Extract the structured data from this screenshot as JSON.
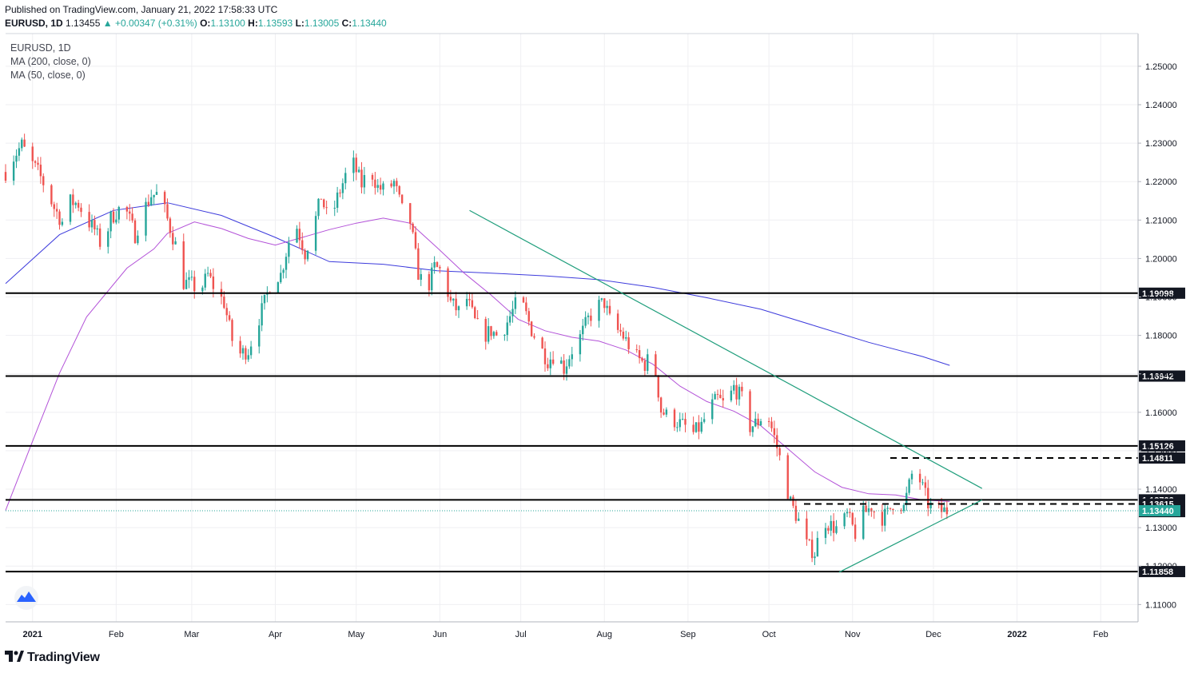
{
  "header": {
    "published": "Published on TradingView.com, January 21, 2022 17:58:33 UTC",
    "symbol": "EURUSD, 1D",
    "price": "1.13455",
    "change_arrow": "▲",
    "change": "+0.00347 (+0.31%)",
    "o_label": "O:",
    "o": "1.13100",
    "h_label": "H:",
    "h": "1.13593",
    "l_label": "L:",
    "l": "1.13005",
    "c_label": "C:",
    "c": "1.13440"
  },
  "legend": {
    "symbol": "EURUSD, 1D",
    "ma200": "MA (200, close, 0)",
    "ma50": "MA (50, close, 0)"
  },
  "footer": {
    "logo_text": "TradingView",
    "logo_icon": "tradingview-logo-icon",
    "watermark_icon": "tradingview-cloud-icon"
  },
  "colors": {
    "up": "#26a69a",
    "down": "#ef5350",
    "ma200": "#3d3bdc",
    "ma50": "#b352d8",
    "trend": "#1f9e7c",
    "level": "#000000",
    "current": "#26a69a",
    "grid": "#efeff2"
  },
  "chart_data": {
    "type": "candlestick",
    "title": "EURUSD, 1D",
    "ylim": [
      1.1055,
      1.2585
    ],
    "y_ticks": [
      "1.25000",
      "1.24000",
      "1.23000",
      "1.22000",
      "1.21000",
      "1.20000",
      "1.19000",
      "1.18000",
      "1.17000",
      "1.16000",
      "1.15000",
      "1.14000",
      "1.13000",
      "1.12000",
      "1.11000"
    ],
    "x_ticks": [
      {
        "label": "2021",
        "bold": true
      },
      {
        "label": "Feb",
        "bold": false
      },
      {
        "label": "Mar",
        "bold": false
      },
      {
        "label": "Apr",
        "bold": false
      },
      {
        "label": "May",
        "bold": false
      },
      {
        "label": "Jun",
        "bold": false
      },
      {
        "label": "Jul",
        "bold": false
      },
      {
        "label": "Aug",
        "bold": false
      },
      {
        "label": "Sep",
        "bold": false
      },
      {
        "label": "Oct",
        "bold": false
      },
      {
        "label": "Nov",
        "bold": false
      },
      {
        "label": "Dec",
        "bold": false
      },
      {
        "label": "2022",
        "bold": true
      },
      {
        "label": "Feb",
        "bold": false
      }
    ],
    "close_path": [
      [
        0,
        1.2225
      ],
      [
        3,
        1.2265
      ],
      [
        6,
        1.2295
      ],
      [
        9,
        1.2255
      ],
      [
        12,
        1.2225
      ],
      [
        15,
        1.2182
      ],
      [
        18,
        1.2132
      ],
      [
        21,
        1.2095
      ],
      [
        24,
        1.2148
      ],
      [
        27,
        1.2142
      ],
      [
        30,
        1.2102
      ],
      [
        33,
        1.2075
      ],
      [
        36,
        1.2025
      ],
      [
        39,
        1.2105
      ],
      [
        42,
        1.2128
      ],
      [
        45,
        1.2118
      ],
      [
        48,
        1.2062
      ],
      [
        51,
        1.2122
      ],
      [
        54,
        1.2165
      ],
      [
        57,
        1.2168
      ],
      [
        60,
        1.2101
      ],
      [
        63,
        1.2035
      ],
      [
        66,
        1.1938
      ],
      [
        69,
        1.1932
      ],
      [
        72,
        1.1915
      ],
      [
        75,
        1.1957
      ],
      [
        78,
        1.1915
      ],
      [
        81,
        1.1885
      ],
      [
        84,
        1.1788
      ],
      [
        87,
        1.1752
      ],
      [
        90,
        1.1762
      ],
      [
        93,
        1.1825
      ],
      [
        96,
        1.1885
      ],
      [
        99,
        1.1952
      ],
      [
        102,
        1.1958
      ],
      [
        105,
        1.2045
      ],
      [
        108,
        1.2082
      ],
      [
        111,
        1.2015
      ],
      [
        114,
        1.2075
      ],
      [
        117,
        1.2162
      ],
      [
        120,
        1.2088
      ],
      [
        123,
        1.2158
      ],
      [
        126,
        1.2215
      ],
      [
        129,
        1.2245
      ],
      [
        132,
        1.2192
      ],
      [
        135,
        1.2235
      ],
      [
        138,
        1.2185
      ],
      [
        141,
        1.2175
      ],
      [
        144,
        1.2198
      ],
      [
        147,
        1.2125
      ],
      [
        150,
        1.2095
      ],
      [
        153,
        1.1962
      ],
      [
        156,
        1.1912
      ],
      [
        159,
        1.1978
      ],
      [
        162,
        1.1965
      ],
      [
        165,
        1.1885
      ],
      [
        168,
        1.1862
      ],
      [
        171,
        1.1895
      ],
      [
        174,
        1.1835
      ],
      [
        177,
        1.1798
      ],
      [
        180,
        1.1812
      ],
      [
        183,
        1.1795
      ],
      [
        186,
        1.1835
      ],
      [
        189,
        1.1878
      ],
      [
        192,
        1.1872
      ],
      [
        195,
        1.1815
      ],
      [
        198,
        1.1772
      ],
      [
        201,
        1.1735
      ],
      [
        204,
        1.1755
      ],
      [
        207,
        1.1715
      ],
      [
        210,
        1.1762
      ],
      [
        213,
        1.1795
      ],
      [
        216,
        1.1842
      ],
      [
        219,
        1.1875
      ],
      [
        222,
        1.1885
      ],
      [
        225,
        1.1818
      ],
      [
        228,
        1.1808
      ],
      [
        231,
        1.1775
      ],
      [
        234,
        1.1742
      ],
      [
        237,
        1.1725
      ],
      [
        240,
        1.1752
      ],
      [
        243,
        1.1605
      ],
      [
        246,
        1.1585
      ],
      [
        249,
        1.1575
      ],
      [
        252,
        1.1562
      ],
      [
        255,
        1.1545
      ],
      [
        258,
        1.1565
      ],
      [
        261,
        1.1612
      ],
      [
        264,
        1.1635
      ],
      [
        267,
        1.1615
      ],
      [
        270,
        1.1665
      ],
      [
        273,
        1.1635
      ],
      [
        276,
        1.1562
      ],
      [
        279,
        1.1575
      ],
      [
        282,
        1.1605
      ],
      [
        285,
        1.1535
      ],
      [
        288,
        1.1455
      ],
      [
        291,
        1.1365
      ],
      [
        294,
        1.1318
      ],
      [
        297,
        1.1255
      ],
      [
        300,
        1.1235
      ],
      [
        303,
        1.1322
      ],
      [
        306,
        1.1305
      ],
      [
        309,
        1.1295
      ],
      [
        312,
        1.1332
      ],
      [
        315,
        1.1285
      ],
      [
        318,
        1.1335
      ],
      [
        321,
        1.1355
      ],
      [
        324,
        1.1322
      ],
      [
        327,
        1.1336
      ],
      [
        330,
        1.1378
      ],
      [
        333,
        1.1352
      ],
      [
        336,
        1.1438
      ],
      [
        339,
        1.1422
      ],
      [
        342,
        1.1362
      ],
      [
        345,
        1.1342
      ],
      [
        348,
        1.1344
      ]
    ],
    "ma200_path": [
      [
        0,
        1.1935
      ],
      [
        20,
        1.2062
      ],
      [
        40,
        1.2125
      ],
      [
        60,
        1.2145
      ],
      [
        80,
        1.2112
      ],
      [
        100,
        1.2055
      ],
      [
        120,
        1.1992
      ],
      [
        140,
        1.1985
      ],
      [
        160,
        1.1968
      ],
      [
        180,
        1.1962
      ],
      [
        200,
        1.1955
      ],
      [
        220,
        1.1945
      ],
      [
        240,
        1.1925
      ],
      [
        260,
        1.1898
      ],
      [
        280,
        1.1868
      ],
      [
        300,
        1.1825
      ],
      [
        320,
        1.1782
      ],
      [
        340,
        1.1745
      ],
      [
        350,
        1.1722
      ]
    ],
    "ma50_path": [
      [
        0,
        1.1345
      ],
      [
        10,
        1.1525
      ],
      [
        20,
        1.1702
      ],
      [
        30,
        1.1848
      ],
      [
        45,
        1.1975
      ],
      [
        55,
        1.2025
      ],
      [
        60,
        1.2065
      ],
      [
        70,
        1.2095
      ],
      [
        80,
        1.2078
      ],
      [
        90,
        1.2052
      ],
      [
        100,
        1.2035
      ],
      [
        110,
        1.2055
      ],
      [
        120,
        1.2075
      ],
      [
        130,
        1.2092
      ],
      [
        140,
        1.2105
      ],
      [
        150,
        1.2092
      ],
      [
        160,
        1.2028
      ],
      [
        170,
        1.1962
      ],
      [
        180,
        1.1905
      ],
      [
        190,
        1.1842
      ],
      [
        200,
        1.1812
      ],
      [
        210,
        1.1795
      ],
      [
        220,
        1.1785
      ],
      [
        230,
        1.1762
      ],
      [
        240,
        1.1725
      ],
      [
        250,
        1.1668
      ],
      [
        260,
        1.1628
      ],
      [
        270,
        1.1603
      ],
      [
        280,
        1.1565
      ],
      [
        290,
        1.1505
      ],
      [
        300,
        1.1445
      ],
      [
        310,
        1.1405
      ],
      [
        320,
        1.1388
      ],
      [
        330,
        1.1385
      ],
      [
        340,
        1.1372
      ],
      [
        350,
        1.1368
      ]
    ],
    "hlines": [
      {
        "price": 1.19098,
        "label": "1.19098",
        "style": "solid"
      },
      {
        "price": 1.16942,
        "label": "1.16942",
        "style": "solid"
      },
      {
        "price": 1.15126,
        "label": "1.15126",
        "style": "solid"
      },
      {
        "price": 1.14811,
        "label": "1.14811",
        "style": "dashed"
      },
      {
        "price": 1.13723,
        "label": "1.13723",
        "style": "solid"
      },
      {
        "price": 1.13615,
        "label": "1.13615",
        "style": "dashed"
      },
      {
        "price": 1.13417,
        "label": "1.13417",
        "style": "none"
      },
      {
        "price": 1.11858,
        "label": "1.11858",
        "style": "solid"
      }
    ],
    "current": {
      "price": 1.1344,
      "label": "1.13440"
    },
    "trendlines": [
      {
        "from": {
          "d": 172,
          "p": 1.2125
        },
        "to": {
          "d": 362,
          "p": 1.1402
        }
      },
      {
        "from": {
          "d": 309,
          "p": 1.1184
        },
        "to": {
          "d": 362,
          "p": 1.1372
        }
      }
    ]
  }
}
